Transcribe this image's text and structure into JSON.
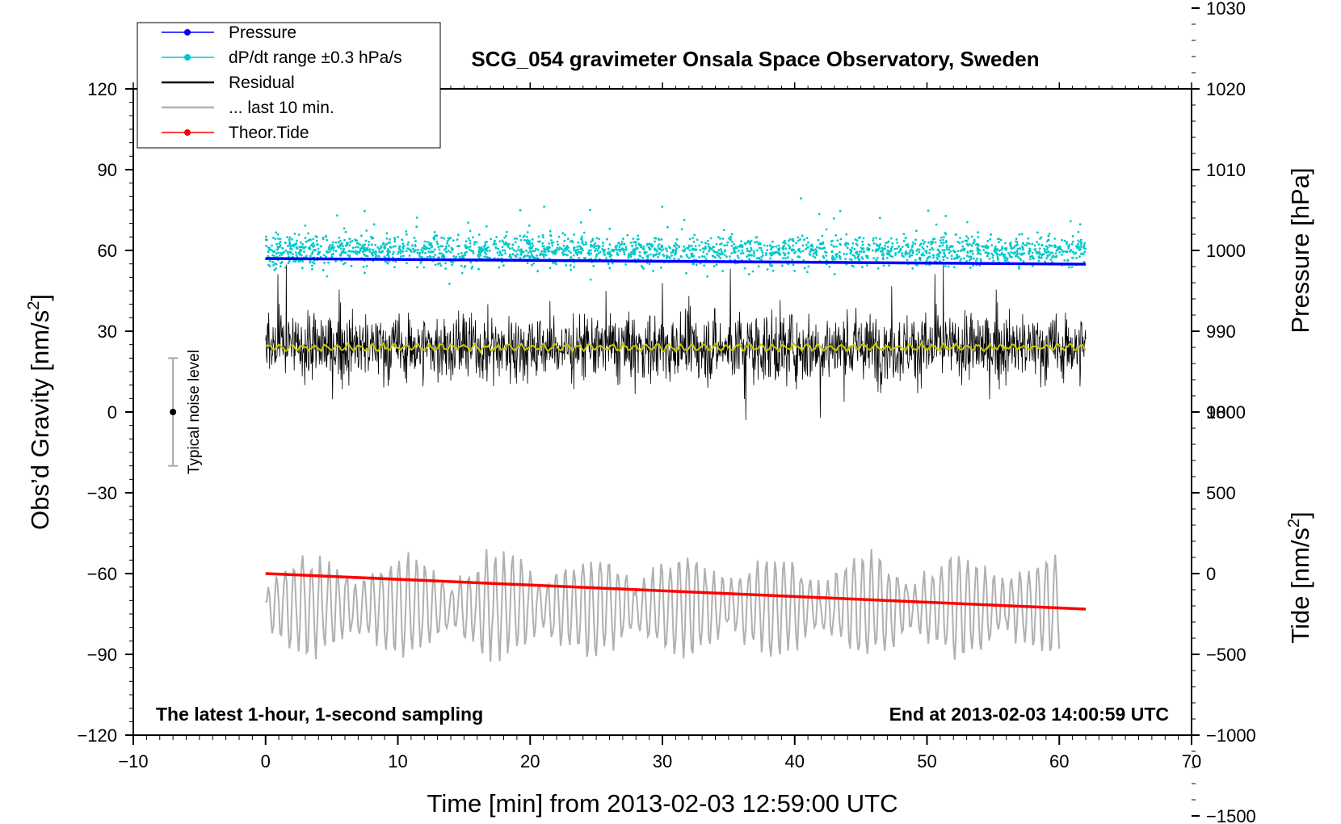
{
  "chart_data": {
    "type": "line",
    "title": "SCG_054 gravimeter Onsala Space Observatory, Sweden",
    "xlabel": "Time [min] from 2013-02-03 12:59:00 UTC",
    "ylabel_left_prefix": "Obs’d Gravity [nm/s",
    "ylabel_left_sup": "2",
    "ylabel_left_suffix": "]",
    "ylabel_right_pressure": "Pressure [hPa]",
    "ylabel_right_tide_prefix": "Tide [nm/s",
    "ylabel_right_tide_sup": "2",
    "ylabel_right_tide_suffix": "]",
    "xlim": [
      -10,
      70
    ],
    "ylim_left": [
      -120,
      120
    ],
    "pressure_ylim": [
      980,
      1030
    ],
    "tide_ylim": [
      -1500,
      1000
    ],
    "x_ticks": [
      -10,
      0,
      10,
      20,
      30,
      40,
      50,
      60,
      70
    ],
    "x_tick_labels": [
      "−10",
      "0",
      "10",
      "20",
      "30",
      "40",
      "50",
      "60",
      "70"
    ],
    "y_left_ticks": [
      120,
      90,
      60,
      30,
      0,
      -30,
      -60,
      -90,
      -120
    ],
    "y_left_tick_labels": [
      "120",
      "90",
      "60",
      "30",
      "0",
      "−30",
      "−60",
      "−90",
      "−120"
    ],
    "pressure_ticks": [
      1030,
      1020,
      1010,
      1000,
      990,
      980
    ],
    "pressure_tick_labels": [
      "1030",
      "1020",
      "1010",
      "1000",
      "990",
      "980"
    ],
    "tide_ticks": [
      1000,
      500,
      0,
      -500,
      -1000,
      -1500
    ],
    "tide_tick_labels": [
      "1000",
      "500",
      "0",
      "−500",
      "−1000",
      "−1500"
    ],
    "legend": [
      {
        "label": "Pressure",
        "color": "#0000ff",
        "marker": true
      },
      {
        "label": "dP/dt range ±0.3 hPa/s",
        "color": "#00c8c8",
        "marker": true
      },
      {
        "label": "Residual",
        "color": "#000000",
        "marker": false
      },
      {
        "label": "... last 10 min.",
        "color": "#b0b0b0",
        "marker": false
      },
      {
        "label": "Theor.Tide",
        "color": "#ff0000",
        "marker": true
      }
    ],
    "series": [
      {
        "name": "Pressure",
        "axis": "pressure",
        "x": [
          0,
          62
        ],
        "values": [
          999.0,
          998.3
        ],
        "color": "#0000ff"
      },
      {
        "name": "dP/dt range ±0.3 hPa/s",
        "axis": "left",
        "x_range": [
          0,
          62
        ],
        "center": 60,
        "spread": 5,
        "color": "#00c8c8"
      },
      {
        "name": "Residual",
        "axis": "left",
        "x_range": [
          0,
          62
        ],
        "center": 24,
        "spread": 20,
        "color": "#000000"
      },
      {
        "name": "Residual (smoothed)",
        "axis": "left",
        "x_range": [
          0,
          62
        ],
        "center": 24,
        "spread": 1.5,
        "color": "#c8c800"
      },
      {
        "name": "... last 10 min.",
        "axis": "left",
        "x_range": [
          0,
          60
        ],
        "center": -72,
        "spread": 12,
        "color": "#b0b0b0"
      },
      {
        "name": "Theor.Tide",
        "axis": "tide",
        "x": [
          0,
          62
        ],
        "values": [
          0,
          -220
        ],
        "color": "#ff0000"
      }
    ],
    "noise_bar": {
      "label": "Typical noise level",
      "x": -7,
      "center": 0,
      "low": -20,
      "high": 20
    },
    "annotations": {
      "left": "The latest 1-hour, 1-second sampling",
      "right": "End at 2013-02-03 14:00:59 UTC"
    }
  }
}
